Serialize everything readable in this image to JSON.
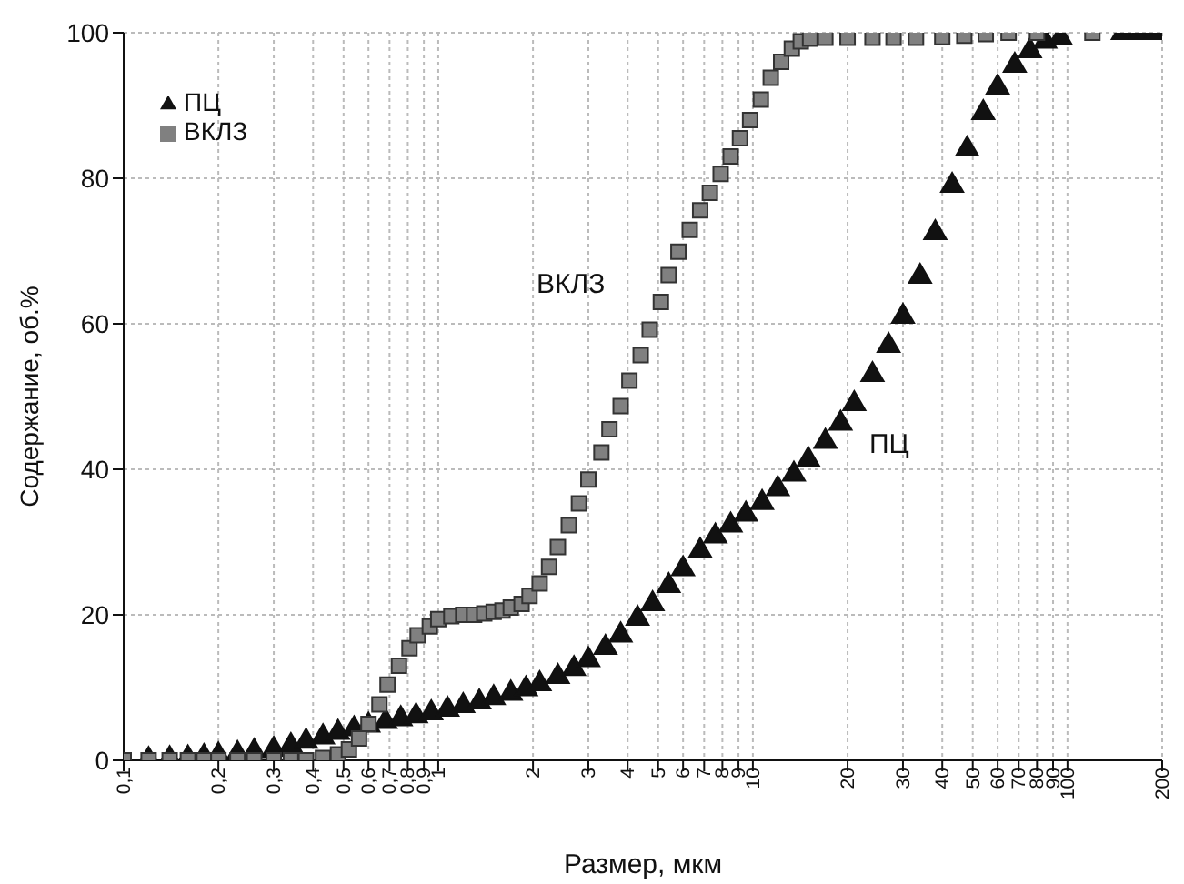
{
  "chart_data": {
    "type": "scatter",
    "xlabel": "Размер, мкм",
    "ylabel": "Содержание, об.%",
    "log": "x",
    "grid": true,
    "legend": "top left",
    "xlim": [
      0.1,
      200
    ],
    "ylim": [
      0,
      100
    ],
    "xticks": [
      {
        "value": 0.1,
        "label": "0,1"
      },
      {
        "value": 0.2,
        "label": "0,2"
      },
      {
        "value": 0.3,
        "label": "0,3"
      },
      {
        "value": 0.4,
        "label": "0,4"
      },
      {
        "value": 0.5,
        "label": "0,5"
      },
      {
        "value": 0.6,
        "label": "0,6"
      },
      {
        "value": 0.7,
        "label": "0,7"
      },
      {
        "value": 0.8,
        "label": "0,8"
      },
      {
        "value": 0.9,
        "label": "0,9"
      },
      1,
      2,
      3,
      4,
      5,
      6,
      7,
      8,
      9,
      10,
      20,
      30,
      40,
      50,
      60,
      70,
      80,
      90,
      100,
      200
    ],
    "yticks": [
      0,
      20,
      40,
      60,
      80,
      100
    ],
    "series": [
      {
        "name": "ПЦ",
        "color": "#111111",
        "marker": "triangle",
        "x": [
          0.12,
          0.14,
          0.16,
          0.18,
          0.2,
          0.23,
          0.26,
          0.3,
          0.34,
          0.38,
          0.43,
          0.48,
          0.54,
          0.6,
          0.68,
          0.76,
          0.85,
          0.95,
          1.07,
          1.2,
          1.35,
          1.5,
          1.7,
          1.9,
          2.1,
          2.4,
          2.7,
          3,
          3.4,
          3.8,
          4.3,
          4.8,
          5.4,
          6,
          6.8,
          7.6,
          8.5,
          9.5,
          10.7,
          12,
          13.5,
          15,
          17,
          19,
          21,
          24,
          27,
          30,
          34,
          38,
          43,
          48,
          54,
          60,
          68,
          76,
          85,
          95,
          150,
          170,
          190
        ],
        "values": [
          0.1,
          0.2,
          0.3,
          0.5,
          0.7,
          0.9,
          1.2,
          1.5,
          2,
          2.6,
          3.2,
          3.8,
          4.3,
          4.8,
          5.3,
          5.7,
          6.1,
          6.5,
          7,
          7.5,
          8,
          8.6,
          9.2,
          9.8,
          10.5,
          11.5,
          12.6,
          13.8,
          15.5,
          17.2,
          19.5,
          21.5,
          24,
          26.3,
          28.8,
          30.8,
          32.3,
          33.8,
          35.4,
          37.3,
          39.3,
          41.3,
          43.8,
          46.3,
          49,
          53,
          57,
          61,
          66.5,
          72.5,
          79,
          84,
          89,
          92.5,
          95.5,
          97.5,
          98.8,
          99.3,
          100,
          100,
          100
        ]
      },
      {
        "name": "ВКЛЗ",
        "color": "#808080",
        "marker": "square",
        "x": [
          0.1,
          0.12,
          0.14,
          0.16,
          0.18,
          0.2,
          0.23,
          0.26,
          0.3,
          0.34,
          0.38,
          0.43,
          0.48,
          0.52,
          0.56,
          0.6,
          0.65,
          0.69,
          0.75,
          0.81,
          0.86,
          0.94,
          1.0,
          1.1,
          1.2,
          1.3,
          1.4,
          1.5,
          1.6,
          1.7,
          1.84,
          1.95,
          2.1,
          2.25,
          2.4,
          2.6,
          2.8,
          3.0,
          3.3,
          3.5,
          3.8,
          4.05,
          4.4,
          4.7,
          5.1,
          5.4,
          5.8,
          6.3,
          6.8,
          7.3,
          7.9,
          8.5,
          9.1,
          9.8,
          10.6,
          11.4,
          12.3,
          13.3,
          14.2,
          15.2,
          17,
          20,
          24,
          28,
          33,
          40,
          47,
          55,
          65,
          80,
          120
        ],
        "values": [
          0,
          0,
          0,
          0,
          0,
          0,
          0,
          0,
          0,
          0,
          0,
          0.3,
          0.8,
          1.5,
          3,
          5,
          7.7,
          10.4,
          13,
          15.4,
          17.2,
          18.4,
          19.4,
          19.8,
          20,
          20,
          20.2,
          20.4,
          20.6,
          21,
          21.5,
          22.6,
          24.3,
          26.6,
          29.3,
          32.3,
          35.3,
          38.6,
          42.3,
          45.5,
          48.7,
          52.2,
          55.7,
          59.2,
          63,
          66.7,
          69.9,
          72.9,
          75.6,
          78,
          80.6,
          83,
          85.5,
          88,
          90.8,
          93.8,
          96,
          97.8,
          98.8,
          99.2,
          99.3,
          99.3,
          99.3,
          99.3,
          99.3,
          99.4,
          99.6,
          99.8,
          100,
          100,
          100
        ]
      }
    ],
    "annotations": [
      "ВКЛЗ",
      "ПЦ"
    ]
  }
}
